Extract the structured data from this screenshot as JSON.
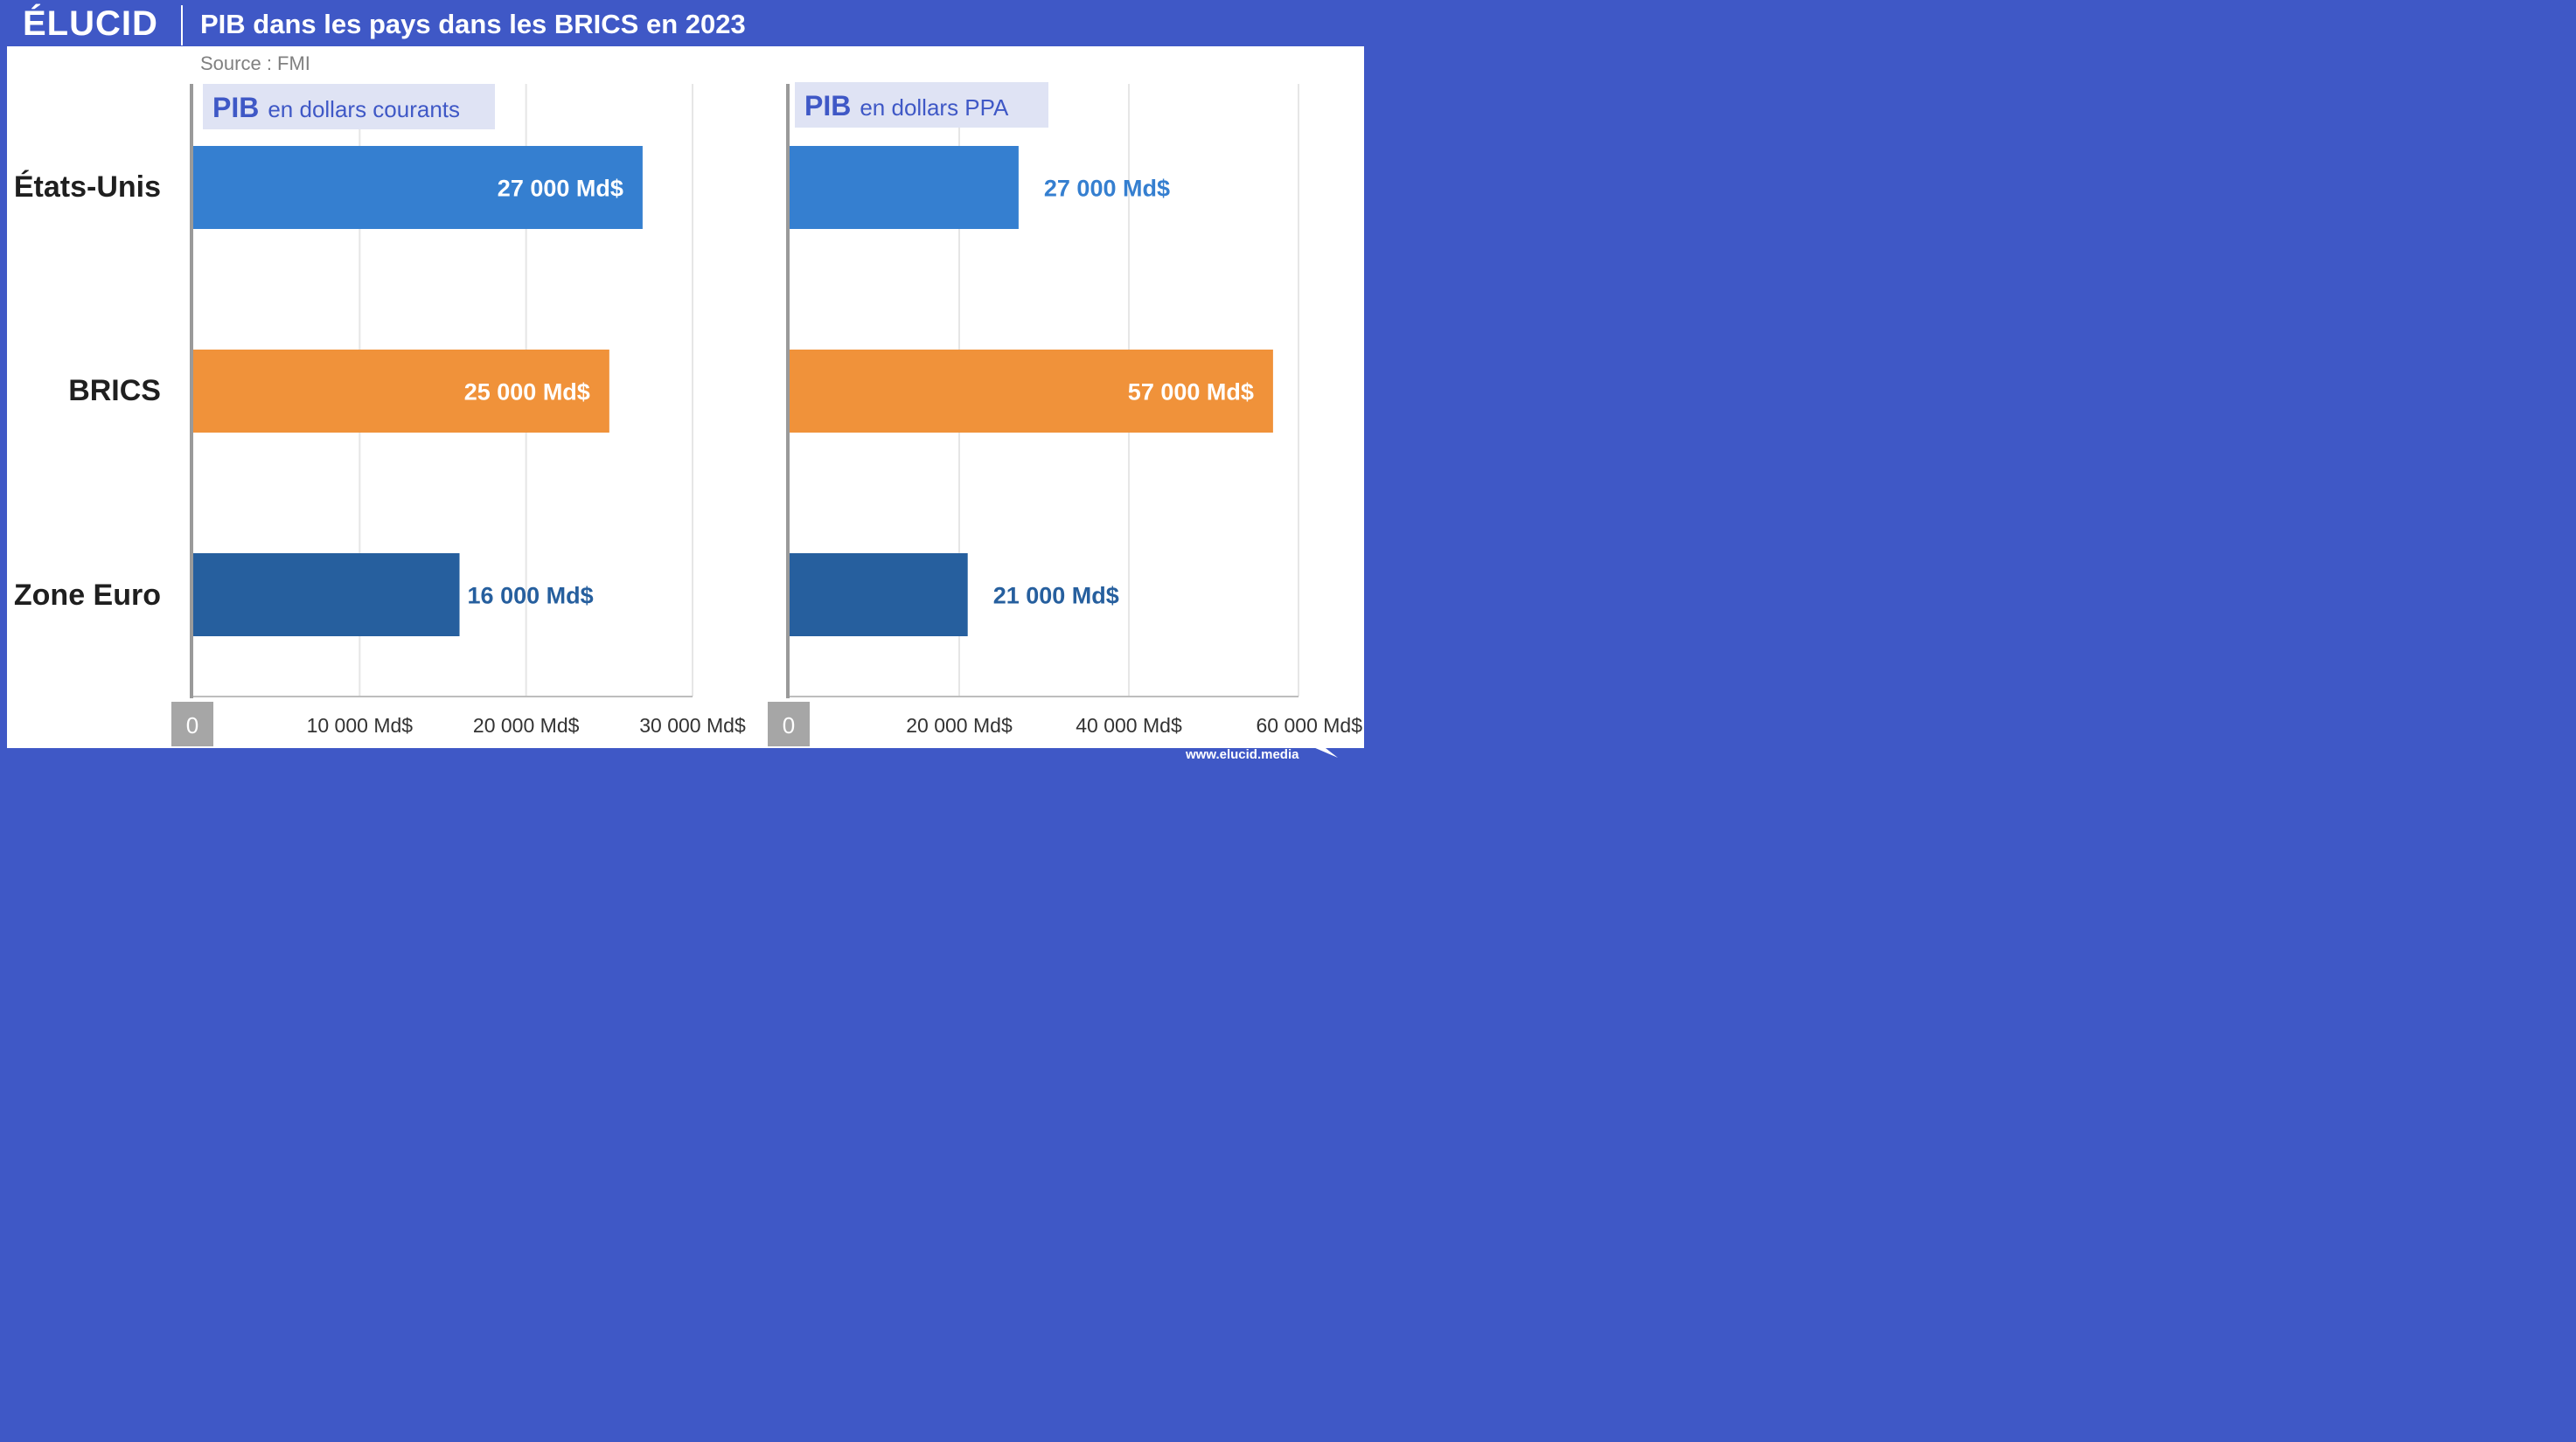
{
  "header": {
    "logo": "ÉLUCID",
    "title": "PIB dans les pays dans les BRICS en 2023"
  },
  "source": "Source : FMI",
  "footer": {
    "url": "www.elucid.media"
  },
  "colors": {
    "brand": "#3f58c6",
    "etats_unis": "#357fd0",
    "brics": "#f0923a",
    "zone_euro": "#265f9e",
    "subtitle_box": "#dfe3f4",
    "subtitle_text": "#3f58c6"
  },
  "categories": [
    "États-Unis",
    "BRICS",
    "Zone Euro"
  ],
  "chart_data": [
    {
      "type": "bar",
      "orientation": "horizontal",
      "title_bold": "PIB",
      "title_rest": "en dollars courants",
      "categories": [
        "États-Unis",
        "BRICS",
        "Zone Euro"
      ],
      "values": [
        27000,
        25000,
        16000
      ],
      "value_labels": [
        "27 000 Md$",
        "25 000 Md$",
        "16 000 Md$"
      ],
      "xlim": [
        0,
        30000
      ],
      "ticks": [
        0,
        10000,
        20000,
        30000
      ],
      "tick_labels": [
        "0",
        "10 000 Md$",
        "20 000 Md$",
        "30 000 Md$"
      ],
      "grid": true
    },
    {
      "type": "bar",
      "orientation": "horizontal",
      "title_bold": "PIB",
      "title_rest": "en dollars PPA",
      "categories": [
        "États-Unis",
        "BRICS",
        "Zone Euro"
      ],
      "values": [
        27000,
        57000,
        21000
      ],
      "value_labels": [
        "27 000 Md$",
        "57 000 Md$",
        "21 000 Md$"
      ],
      "xlim": [
        0,
        60000
      ],
      "ticks": [
        0,
        20000,
        40000,
        60000
      ],
      "tick_labels": [
        "0",
        "20 000 Md$",
        "40 000 Md$",
        "60 000 Md$"
      ],
      "grid": true
    }
  ]
}
